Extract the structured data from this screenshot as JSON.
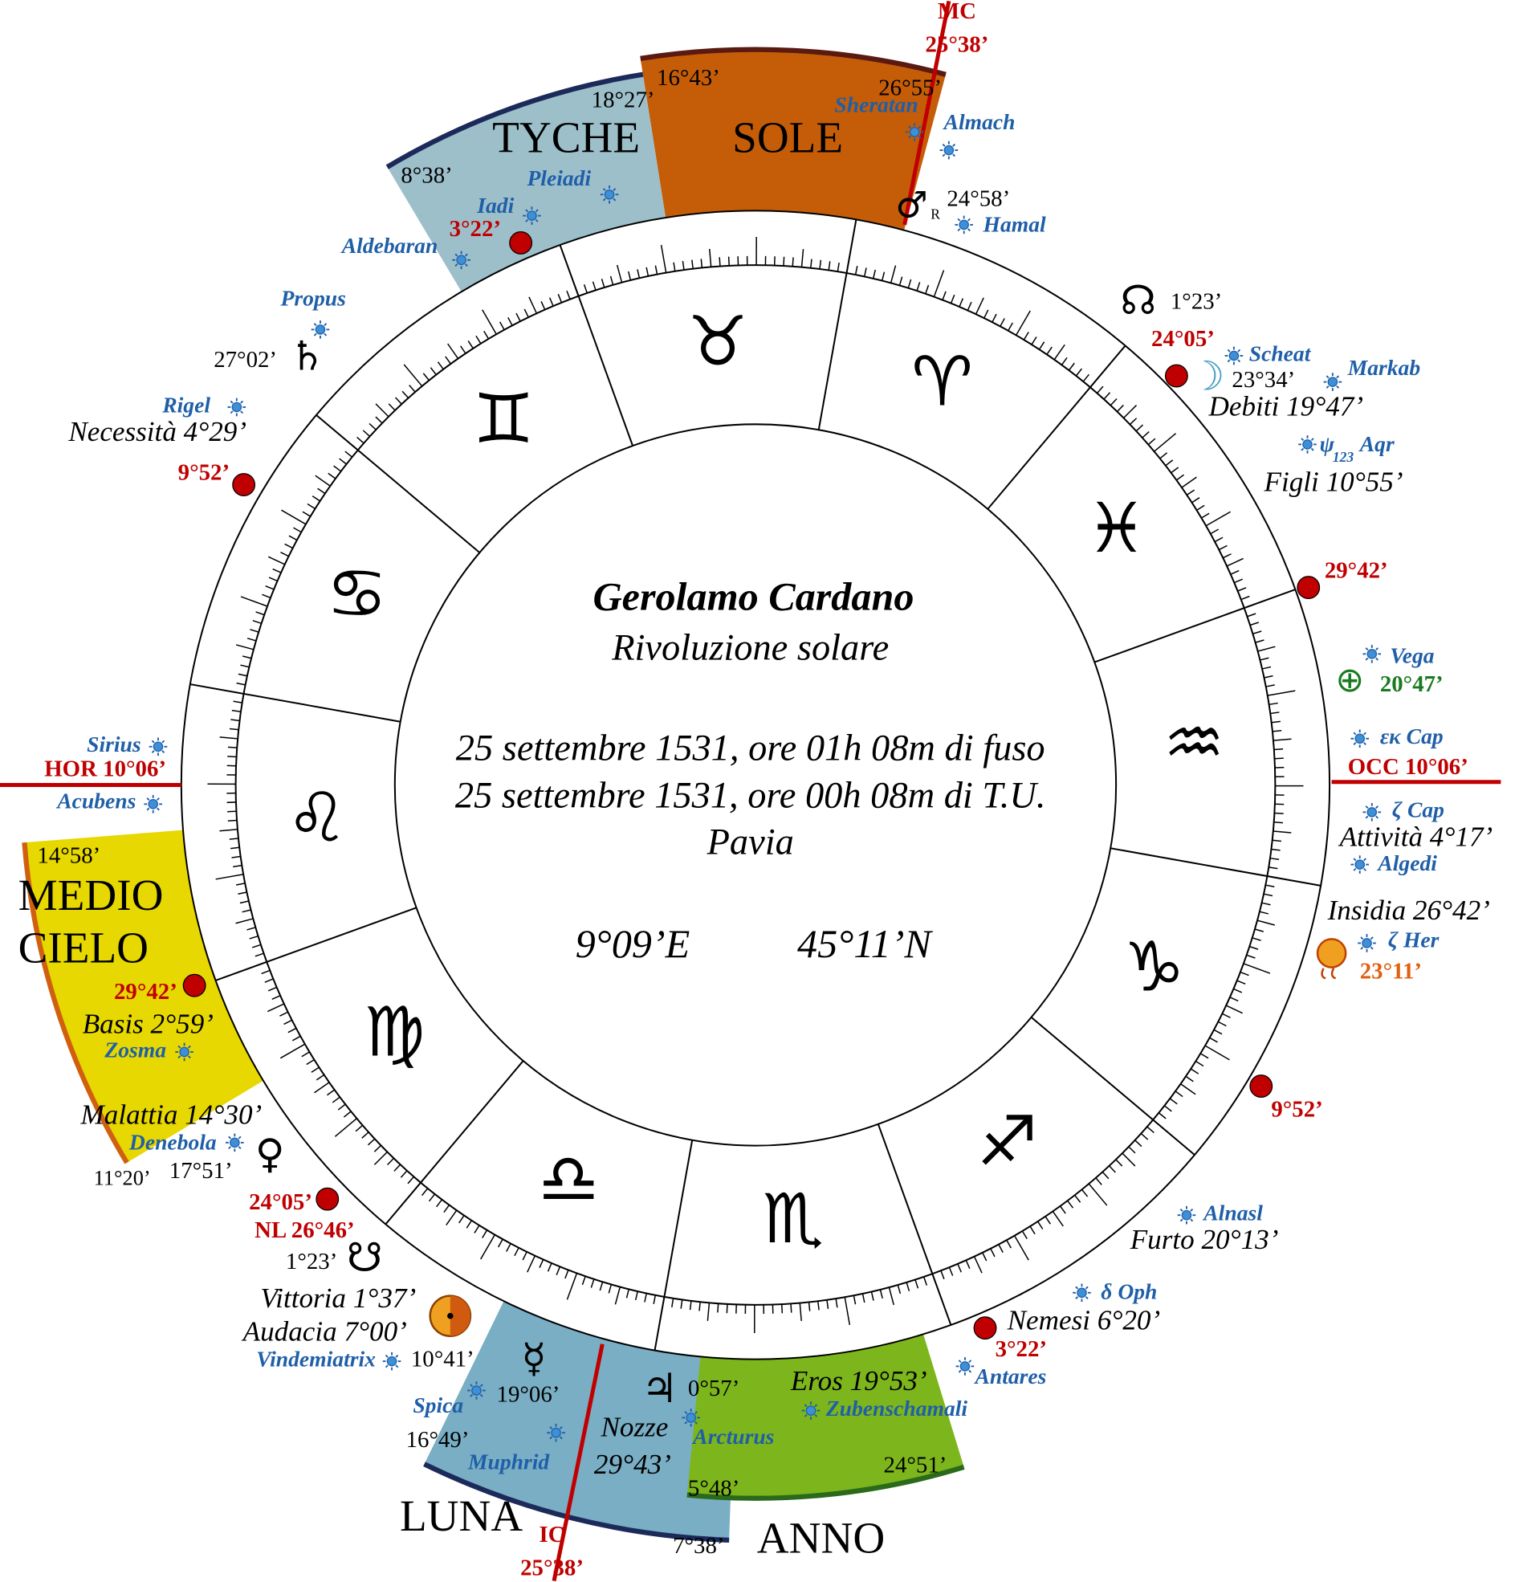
{
  "center": {
    "name": "Gerolamo Cardano",
    "subtitle": "Rivoluzione solare",
    "line1": "25 settembre 1531, ore 01h 08m di fuso",
    "line2": "25 settembre 1531, ore 00h 08m di T.U.",
    "place": "Pavia",
    "longitude": "9°09’E",
    "latitude": "45°11’N"
  },
  "angles": {
    "mc": {
      "label": "MC",
      "degree": "25°38’"
    },
    "ic": {
      "label": "IC",
      "degree": "25°38’"
    },
    "hor": "HOR 10°06’",
    "occ": "OCC 10°06’"
  },
  "signs": [
    "♈",
    "♉",
    "♊",
    "♋",
    "♌",
    "♍",
    "♎",
    "♏",
    "♐",
    "♑",
    "♒",
    "♓"
  ],
  "houses": {
    "tyche": {
      "name": "TYCHE",
      "start": "8°38’",
      "end": "18°27’"
    },
    "sole": {
      "name": "SOLE",
      "start": "16°43’",
      "end": "26°55’"
    },
    "medio_cielo": {
      "name": [
        "MEDIO",
        "CIELO"
      ],
      "start": "14°58’"
    },
    "luna": {
      "name": "LUNA",
      "start": "16°49’",
      "end": "7°38’"
    },
    "anno": {
      "name": "ANNO",
      "start": "5°48’",
      "end": "24°51’"
    }
  },
  "planets": {
    "mars": {
      "glyph": "♂",
      "retro": "R",
      "degree": "24°58’"
    },
    "saturn": {
      "glyph": "♄",
      "degree": "27°02’"
    },
    "north_node": {
      "glyph": "☊",
      "degree": "1°23’"
    },
    "moon": {
      "glyph": "☽",
      "degree": "23°34’"
    },
    "fortune": {
      "glyph": "⊕",
      "degree": "20°47’"
    },
    "her": {
      "degree": "23°11’"
    },
    "jupiter": {
      "glyph": "♃",
      "degree": "0°57’"
    },
    "mercury": {
      "glyph": "☿",
      "degree": "19°06’"
    },
    "sun": {
      "degree": "10°41’"
    },
    "south_node": {
      "glyph": "☋",
      "degree": "1°23’"
    },
    "venus": {
      "glyph": "♀",
      "degree": "17°51’",
      "degree2": "11°20’"
    }
  },
  "cusps": [
    "3°22’",
    "9°52’",
    "24°05’",
    "29°42’",
    "9°52’",
    "3°22’",
    "24°05’",
    "29°42’"
  ],
  "new_moon": "NL 26°46’",
  "parts": [
    "Debiti 19°47’",
    "Figli 10°55’",
    "Attività 4°17’",
    "Insidia 26°42’",
    "Furto 20°13’",
    "Nemesi 6°20’",
    "Eros 19°53’",
    "Nozze",
    "29°43’",
    "Vittoria 1°37’",
    "Audacia 7°00’",
    "Malattia 14°30’",
    "Basis 2°59’",
    "Necessità 4°29’"
  ],
  "stars": [
    "Sheratan",
    "Almach",
    "Hamal",
    "Pleiadi",
    "Iadi",
    "Aldebaran",
    "Propus",
    "Rigel",
    "Sirius",
    "Acubens",
    "Zosma",
    "Denebola",
    "Vindemiatrix",
    "Spica",
    "Muphrid",
    "Arcturus",
    "Zubenschamali",
    "Antares",
    "δ Oph",
    "Alnasl",
    "Algedi",
    "ζ Cap",
    "εκ Cap",
    "Vega",
    "ζ Her",
    "Markab",
    "Scheat"
  ],
  "psi_aqr": {
    "symbol": "ψ",
    "sub": "123",
    "name": "Aqr"
  }
}
